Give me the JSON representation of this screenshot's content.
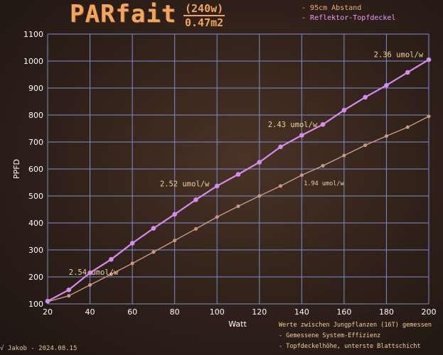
{
  "header": {
    "brand": "PARfait",
    "wattage": "(240w)",
    "area": "0.47m2"
  },
  "colors": {
    "reflector_series": "#d58cf0",
    "distance_series": "#c89a86",
    "grid": "#7e8fc8",
    "axis_text": "#ffffff",
    "annotation_text": "#f0d49a",
    "brand": "#f2a65a",
    "legend_distance": "#f0b070",
    "legend_reflector": "#e0a0ff"
  },
  "notes": {
    "line1": "Werte zwischen Jungpflanzen (16T) gemessen",
    "line2": "Gemessene System-Effizienz",
    "line3": "Topfdeckelhöhe, unterste Blattschicht"
  },
  "signature": "√ Jakob - 2024.08.15",
  "chart_data": {
    "type": "line",
    "xlabel": "Watt",
    "ylabel": "PPFD",
    "xlim": [
      20,
      200
    ],
    "ylim": [
      100,
      1100
    ],
    "xticks": [
      20,
      40,
      60,
      80,
      100,
      120,
      140,
      160,
      180,
      200
    ],
    "yticks": [
      100,
      200,
      300,
      400,
      500,
      600,
      700,
      800,
      900,
      1000,
      1100
    ],
    "grid": true,
    "legend_position": "top-right",
    "series": [
      {
        "name": "95cm Abstand",
        "color": "#c89a86",
        "x": [
          20,
          30,
          40,
          50,
          60,
          70,
          80,
          90,
          100,
          110,
          120,
          130,
          140,
          150,
          160,
          170,
          180,
          190,
          200
        ],
        "values": [
          108,
          130,
          170,
          210,
          250,
          292,
          335,
          378,
          422,
          462,
          500,
          537,
          577,
          612,
          650,
          688,
          722,
          755,
          795
        ]
      },
      {
        "name": "Reflektor-Topfdeckel",
        "color": "#d58cf0",
        "x": [
          20,
          30,
          40,
          50,
          60,
          70,
          80,
          90,
          100,
          110,
          120,
          130,
          140,
          150,
          160,
          170,
          180,
          190,
          200
        ],
        "values": [
          110,
          152,
          215,
          265,
          325,
          380,
          432,
          486,
          537,
          580,
          625,
          682,
          725,
          765,
          818,
          866,
          910,
          958,
          1005
        ]
      }
    ],
    "annotations": [
      {
        "text": "2.54 umol/w",
        "x": 30,
        "y": 208
      },
      {
        "text": "2.52 umol/w",
        "x": 73,
        "y": 535
      },
      {
        "text": "2.43 umol/w",
        "x": 124,
        "y": 755
      },
      {
        "text": "1.94 umol/w",
        "x": 141,
        "y": 540
      },
      {
        "text": "2.36 umol/w",
        "x": 174,
        "y": 1015
      }
    ]
  }
}
